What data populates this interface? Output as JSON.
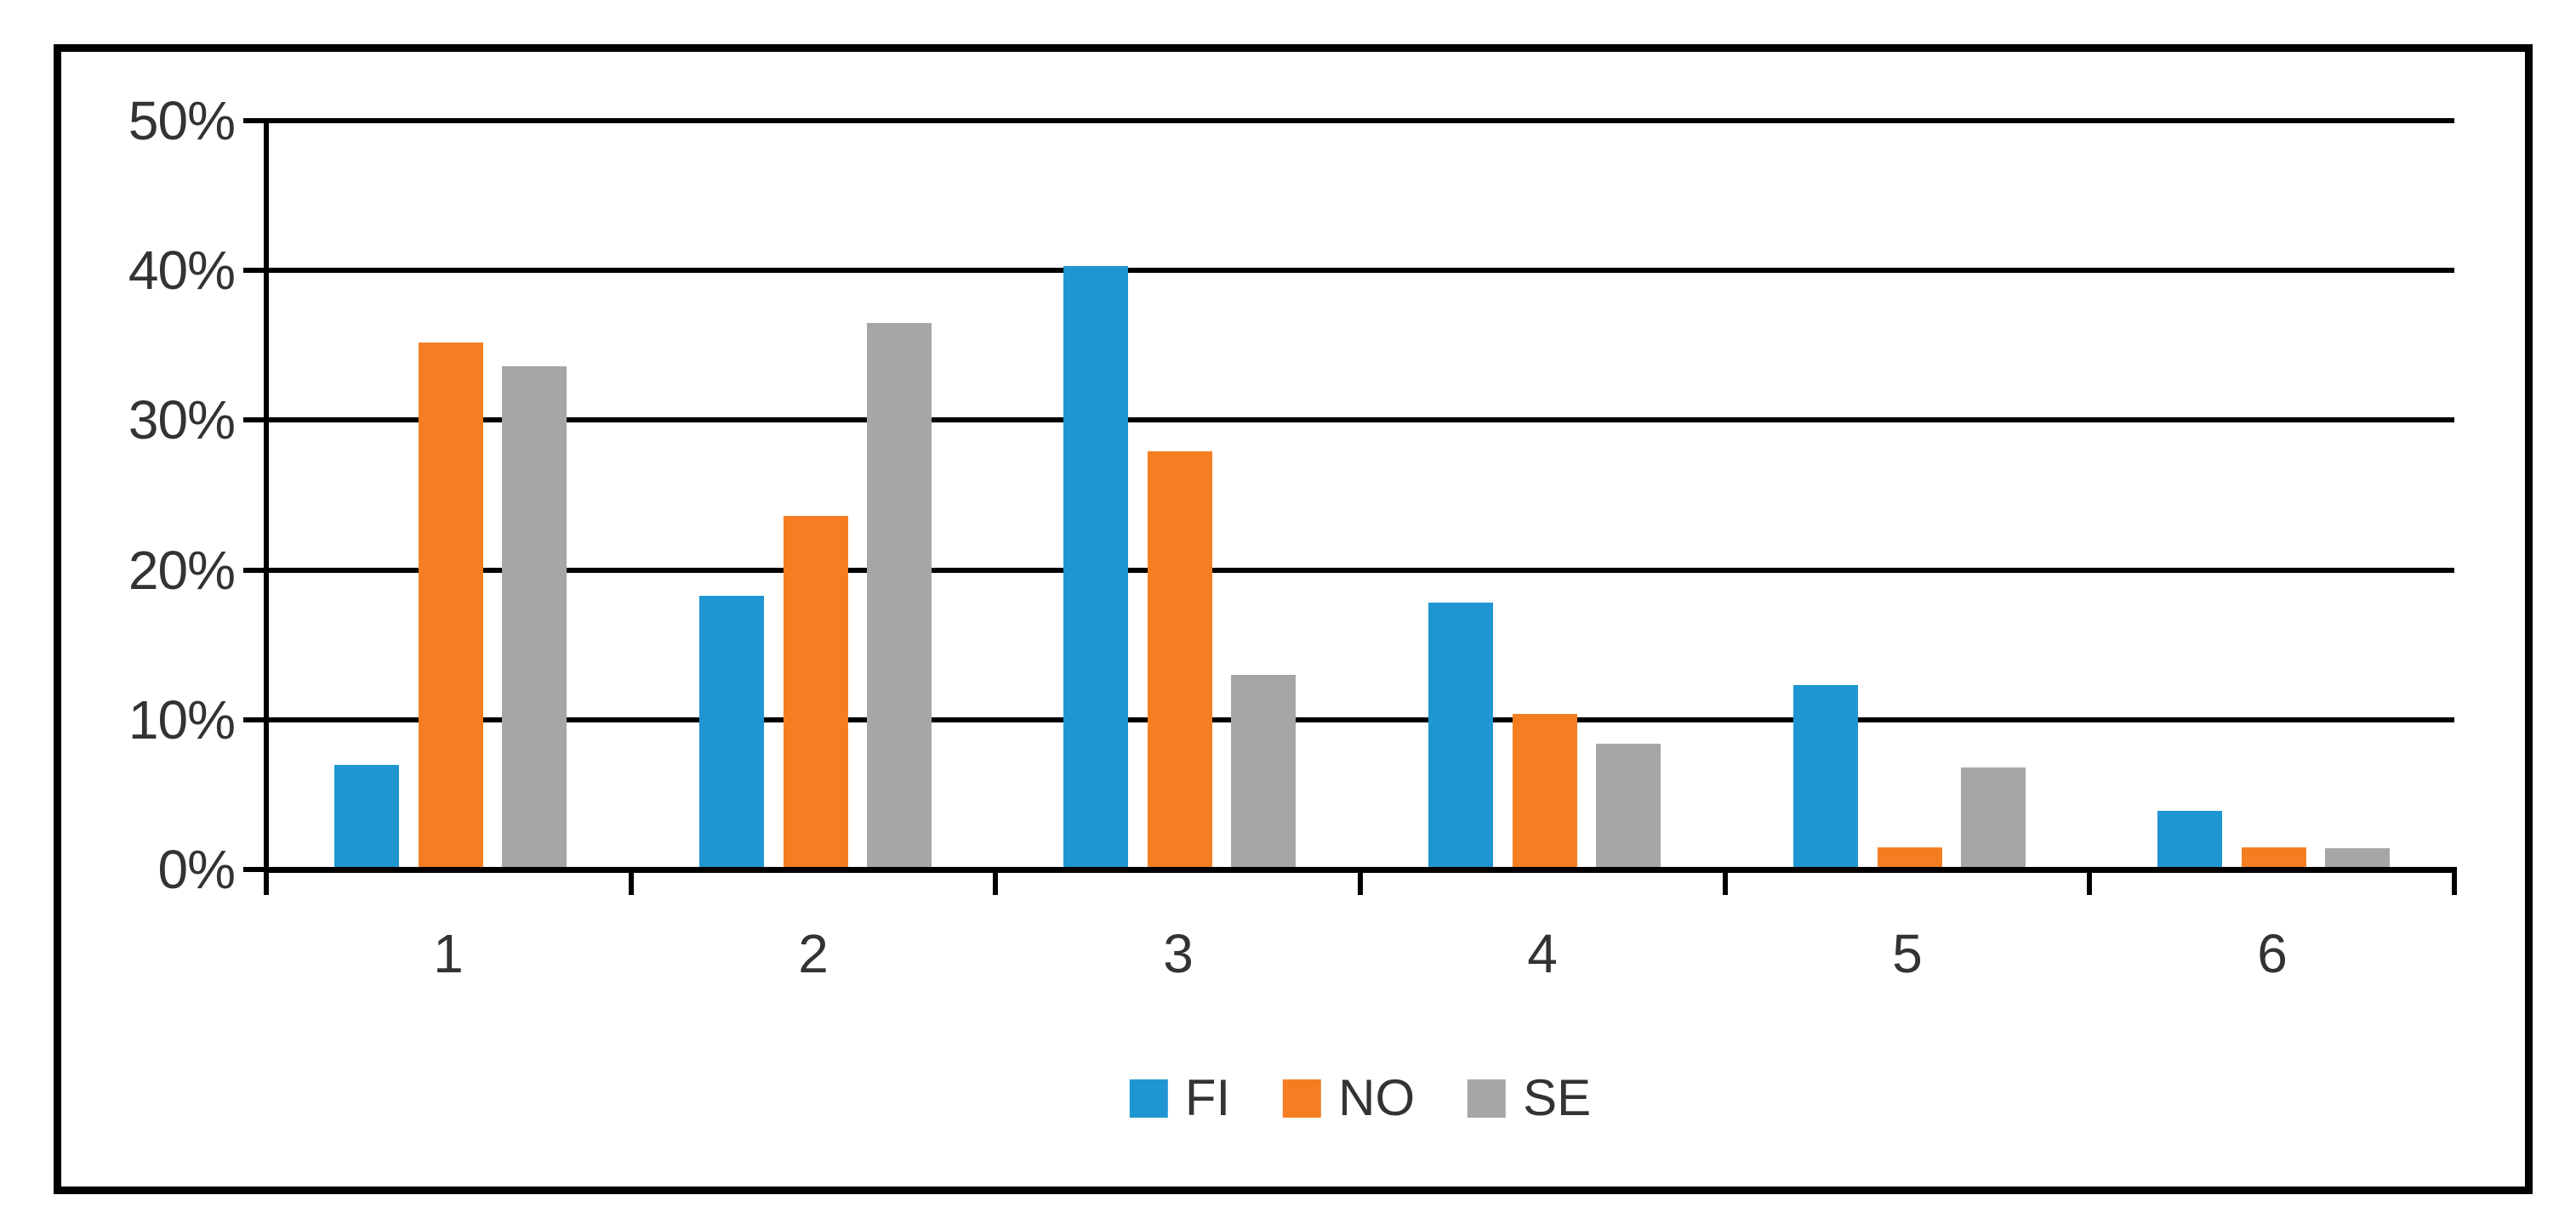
{
  "chart_data": {
    "type": "bar",
    "title": "",
    "categories": [
      "1",
      "2",
      "3",
      "4",
      "5",
      "6"
    ],
    "series": [
      {
        "name": "FI",
        "color": "#1F96D2",
        "values": [
          7.0,
          18.3,
          40.3,
          17.8,
          12.3,
          3.9
        ]
      },
      {
        "name": "NO",
        "color": "#F57E23",
        "values": [
          35.2,
          23.6,
          27.9,
          10.4,
          1.5,
          1.5
        ]
      },
      {
        "name": "SE",
        "color": "#A6A6A6",
        "values": [
          33.6,
          36.5,
          13.0,
          8.4,
          6.8,
          1.4
        ]
      }
    ],
    "y_axis": {
      "min": 0,
      "max": 50,
      "step": 10,
      "tick_labels": [
        "50%",
        "40%",
        "30%",
        "20%",
        "10%",
        "0%"
      ],
      "unit": "percent"
    },
    "x_axis": {
      "tick_labels": [
        "1",
        "2",
        "3",
        "4",
        "5",
        "6"
      ]
    },
    "legend": {
      "position": "bottom",
      "entries": [
        "FI",
        "NO",
        "SE"
      ]
    },
    "grid": true,
    "grid_color": "#000000",
    "axis_color": "#000000",
    "frame_color": "#000000",
    "text_color": "#333333"
  }
}
